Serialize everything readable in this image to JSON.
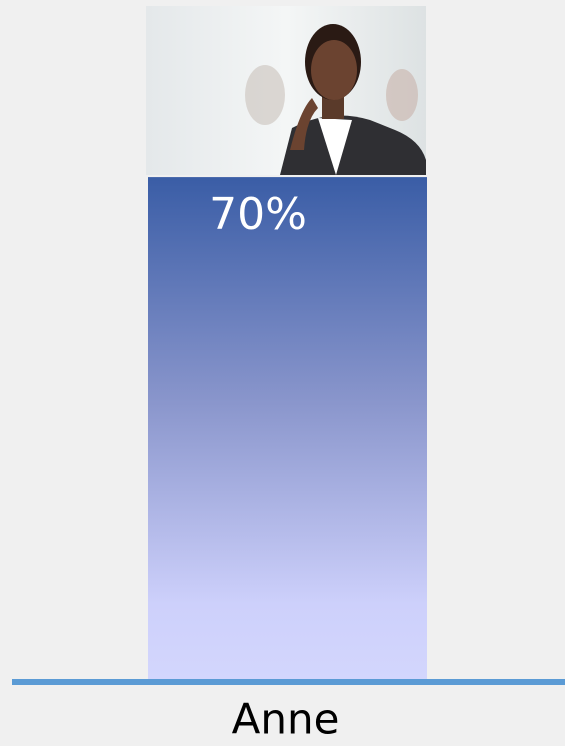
{
  "chart_data": {
    "type": "bar",
    "categories": [
      "Anne"
    ],
    "values": [
      70
    ],
    "value_labels": [
      "70%"
    ]
  }
}
